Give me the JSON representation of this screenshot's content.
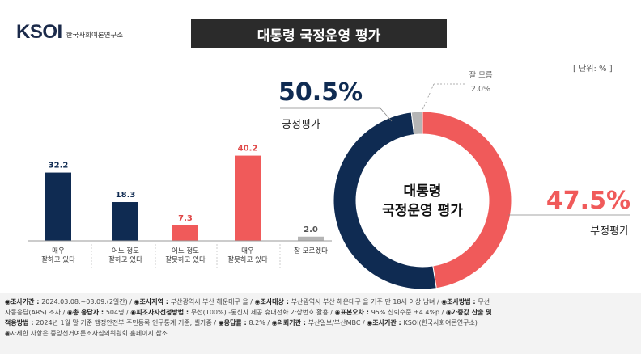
{
  "logo": {
    "mark": "KSOI",
    "subtitle": "한국사회여론연구소"
  },
  "title": "대통령 국정운영 평가",
  "unit": "[ 단위: % ]",
  "colors": {
    "navy": "#0f2b52",
    "red": "#f05a5a",
    "dont_know": "#b5b5b5",
    "title_bg": "#2b2b2b"
  },
  "chart_data": [
    {
      "type": "bar",
      "categories": [
        "매우\n잘하고 있다",
        "어느 정도\n잘하고 있다",
        "어느 정도\n잘못하고 있다",
        "매우\n잘못하고 있다",
        "잘 모르겠다"
      ],
      "values": [
        32.2,
        18.3,
        7.3,
        40.2,
        2.0
      ],
      "value_labels": [
        "32.2",
        "18.3",
        "7.3",
        "40.2",
        "2.0"
      ],
      "bar_colors": [
        "#0f2b52",
        "#0f2b52",
        "#f05a5a",
        "#f05a5a",
        "#b5b5b5"
      ],
      "ylim": [
        0,
        45
      ]
    },
    {
      "type": "pie",
      "center_label": [
        "대통령",
        "국정운영 평가"
      ],
      "slices": [
        {
          "label": "긍정평가",
          "value": 50.5,
          "value_label": "50.5%",
          "color": "#0f2b52"
        },
        {
          "label": "부정평가",
          "value": 47.5,
          "value_label": "47.5%",
          "color": "#f05a5a"
        },
        {
          "label": "잘 모름",
          "value": 2.0,
          "value_label": "2.0%",
          "color": "#b5b5b5"
        }
      ]
    }
  ],
  "footer": {
    "line1": [
      {
        "k": "◉조사기간",
        "v": "2024.03.08.~03.09.(2일간)"
      },
      {
        "k": "◉조사지역",
        "v": "부산광역시 부산 해운대구 을"
      },
      {
        "k": "◉조사대상",
        "v": "부산광역시 부산 해운대구 을 거주 만 18세 이상 남녀"
      },
      {
        "k": "◉조사방법",
        "v": "무선"
      }
    ],
    "line2": [
      {
        "k": "",
        "v": "자동응답(ARS) 조사"
      },
      {
        "k": "◉총 응답자",
        "v": "504명"
      },
      {
        "k": "◉피조사자선정방법",
        "v": "무선(100%) -통신사 제공 휴대전화 가상번호 활용"
      },
      {
        "k": "◉표본오차",
        "v": "95% 신뢰수준 ±4.4%p"
      },
      {
        "k": "◉가중값 산출 및",
        "v": ""
      }
    ],
    "line3": [
      {
        "k": "적용방법",
        "v": "2024년 1월 말 기준 행정안전부 주민등록 인구통계 기준, 셀가중"
      },
      {
        "k": "◉응답률",
        "v": "8.2%"
      },
      {
        "k": "◉의뢰기관",
        "v": "부산일보/부산MBC"
      },
      {
        "k": "◉조사기관",
        "v": "KSOI(한국사회여론연구소)"
      }
    ],
    "line4": "◉자세한 사항은 중앙선거여론조사심의위원회 홈페이지 참조"
  }
}
